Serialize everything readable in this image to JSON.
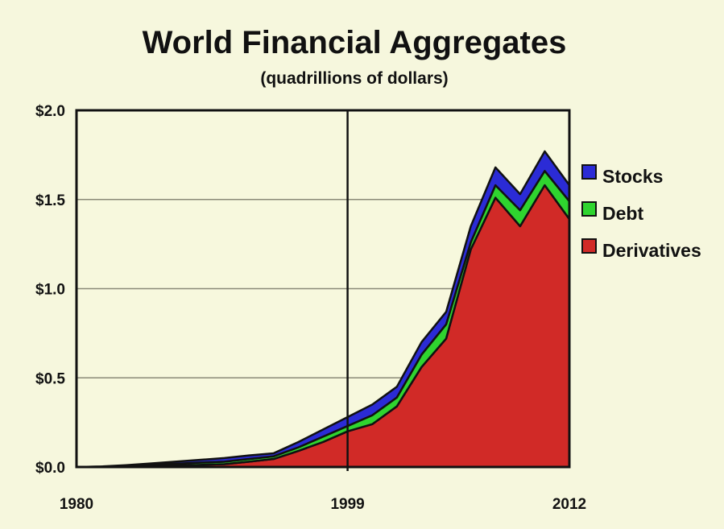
{
  "chart_data": {
    "type": "area",
    "stacked": true,
    "title": "World Financial Aggregates",
    "subtitle": "(quadrillions of dollars)",
    "categories": [
      "1980",
      "",
      "",
      "",
      "",
      "",
      "",
      "",
      "",
      "",
      "",
      "1999",
      "",
      "",
      "",
      "",
      "",
      "",
      "",
      "",
      "2012"
    ],
    "y_ticks": [
      "$0.0",
      "$0.5",
      "$1.0",
      "$1.5",
      "$2.0"
    ],
    "ylim": [
      0,
      2.0
    ],
    "grid": true,
    "reference_line": "1999",
    "legend_position": "right",
    "series": [
      {
        "name": "Derivatives",
        "color": "#d12a27",
        "values": [
          0,
          0.001,
          0.002,
          0.005,
          0.008,
          0.012,
          0.016,
          0.03,
          0.045,
          0.09,
          0.14,
          0.2,
          0.24,
          0.34,
          0.56,
          0.72,
          1.22,
          1.51,
          1.35,
          1.58,
          1.39
        ]
      },
      {
        "name": "Debt",
        "color": "#2fd42f",
        "values": [
          0,
          0.001,
          0.004,
          0.007,
          0.01,
          0.013,
          0.014,
          0.015,
          0.015,
          0.02,
          0.03,
          0.03,
          0.05,
          0.05,
          0.07,
          0.08,
          0.04,
          0.07,
          0.09,
          0.08,
          0.1
        ]
      },
      {
        "name": "Stocks",
        "color": "#2b2bd6",
        "values": [
          0,
          0.001,
          0.004,
          0.008,
          0.012,
          0.015,
          0.02,
          0.02,
          0.017,
          0.03,
          0.04,
          0.05,
          0.06,
          0.06,
          0.07,
          0.07,
          0.09,
          0.1,
          0.09,
          0.11,
          0.09
        ]
      }
    ]
  }
}
